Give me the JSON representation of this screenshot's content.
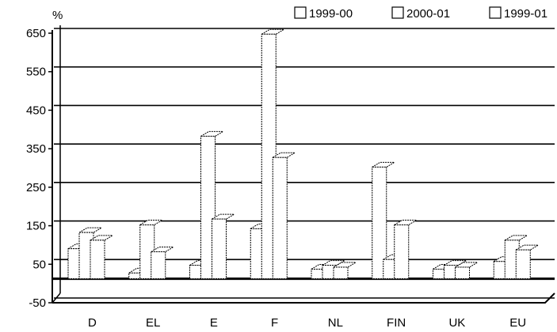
{
  "chart_data": {
    "type": "bar",
    "ylabel": "%",
    "categories": [
      "D",
      "EL",
      "E",
      "F",
      "NL",
      "FIN",
      "UK",
      "EU"
    ],
    "series": [
      {
        "name": "1999-00",
        "values": [
          78,
          15,
          35,
          130,
          25,
          290,
          25,
          45
        ]
      },
      {
        "name": "2000-01",
        "values": [
          120,
          140,
          370,
          635,
          35,
          50,
          35,
          100
        ]
      },
      {
        "name": "1999-01",
        "values": [
          100,
          70,
          155,
          315,
          30,
          140,
          30,
          75
        ]
      }
    ],
    "yticks": [
      -50,
      50,
      150,
      250,
      350,
      450,
      550,
      650
    ],
    "ylim": [
      -50,
      650
    ],
    "grid": true,
    "legend_position": "top-right",
    "colors": {
      "bars": "#ffffff",
      "lines": "#000000",
      "background": "#ffffff"
    }
  }
}
